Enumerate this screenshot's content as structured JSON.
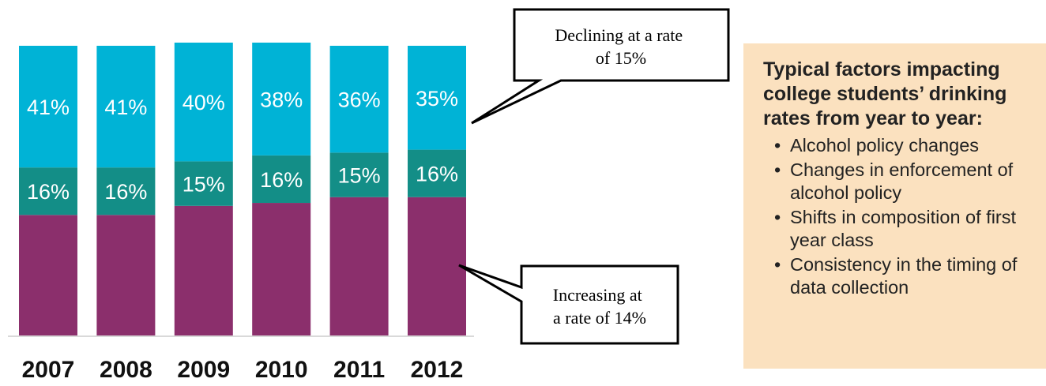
{
  "chart_data": {
    "type": "bar",
    "stacked": true,
    "categories": [
      "2007",
      "2008",
      "2009",
      "2010",
      "2011",
      "2012"
    ],
    "series": [
      {
        "values": [
          null,
          null,
          null,
          null,
          null,
          null
        ]
      },
      {
        "values": [
          16,
          16,
          15,
          16,
          15,
          16
        ]
      },
      {
        "values": [
          41,
          41,
          40,
          38,
          36,
          35
        ]
      }
    ],
    "bar_top_percent": [
      41,
      41,
      40,
      38,
      36,
      35
    ],
    "bar_middle_percent": [
      16,
      16,
      15,
      16,
      15,
      16
    ],
    "colors": {
      "bottom": "#8b2f6c",
      "middle": "#138e87",
      "top": "#00b3d6"
    },
    "callouts": [
      {
        "text": "Declining at a rate of 15%",
        "target": "top segment"
      },
      {
        "text": "Increasing at a rate of 14%",
        "target": "bottom segment"
      }
    ]
  },
  "factors": {
    "title": "Typical factors impacting college students’ drinking rates from year to year:",
    "items": [
      "Alcohol policy changes",
      "Changes in enforcement of alcohol policy",
      "Shifts in composition of first year class",
      "Consistency in the timing of data collection"
    ]
  }
}
